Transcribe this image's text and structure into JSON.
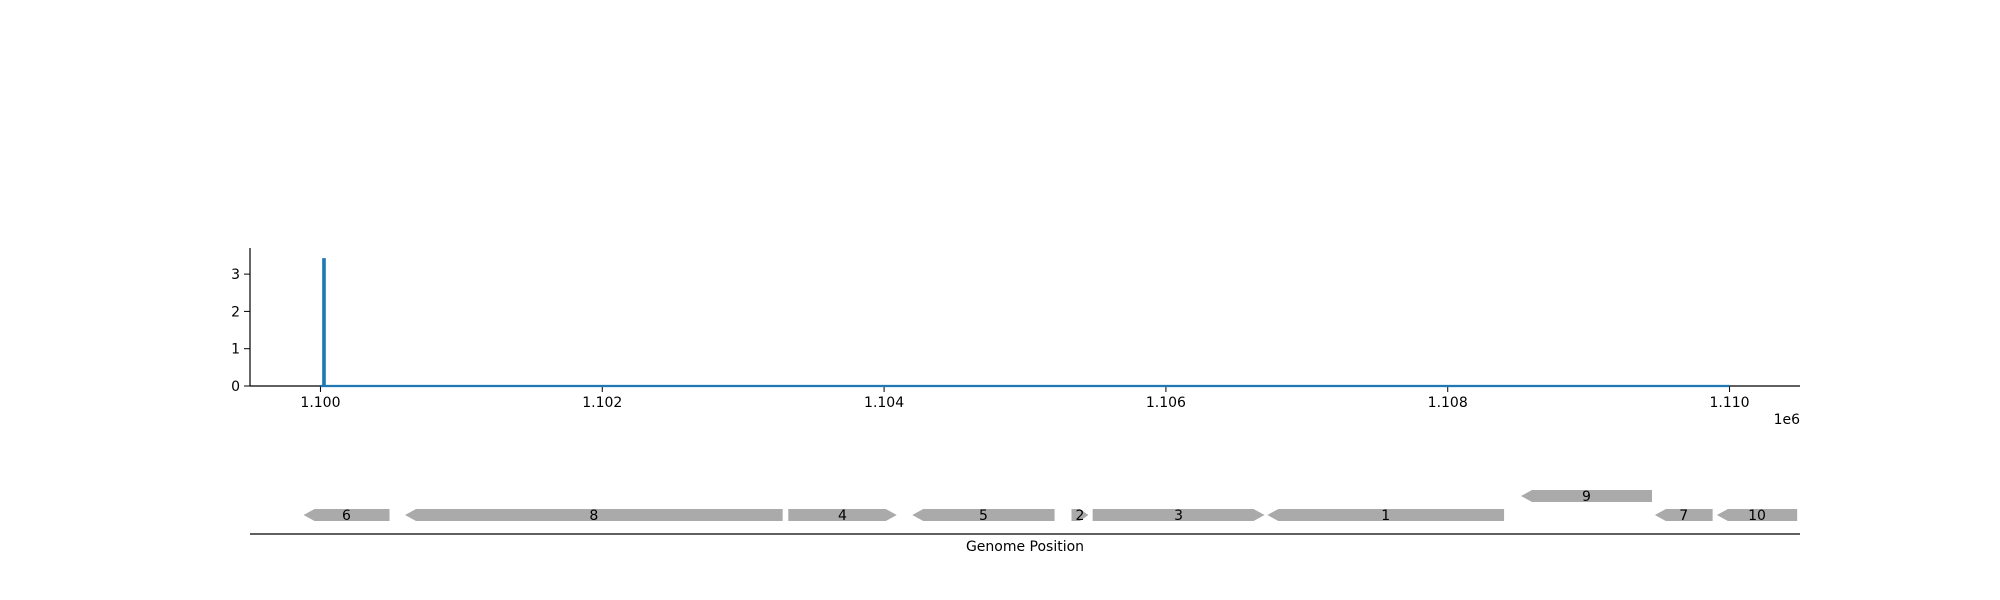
{
  "chart_data": [
    {
      "type": "line",
      "title": "",
      "xlabel": "",
      "ylabel": "",
      "xlim": [
        1099500,
        1110500
      ],
      "ylim": [
        0,
        3.7
      ],
      "x_ticks": [
        1100000,
        1102000,
        1104000,
        1106000,
        1108000,
        1110000
      ],
      "x_tick_labels": [
        "1.100",
        "1.102",
        "1.104",
        "1.106",
        "1.108",
        "1.110"
      ],
      "x_offset_label": "1e6",
      "y_ticks": [
        0,
        1,
        2,
        3
      ],
      "y_tick_labels": [
        "0",
        "1",
        "2",
        "3"
      ],
      "grid": false,
      "color": "#1f77b4",
      "series": [
        {
          "x": [
            1100000,
            1100020,
            1100020,
            1100030,
            1100030,
            1110000
          ],
          "y": [
            0,
            0,
            3.4,
            3.4,
            0,
            0
          ]
        }
      ]
    },
    {
      "type": "gene_map",
      "xlabel": "Genome Position",
      "xlim": [
        1099500,
        1110500
      ],
      "color": "#aaaaaa",
      "genes": [
        {
          "label": "6",
          "start": 1099880,
          "end": 1100490,
          "strand": "-",
          "row": 0
        },
        {
          "label": "8",
          "start": 1100600,
          "end": 1103280,
          "strand": "-",
          "row": 0
        },
        {
          "label": "4",
          "start": 1103320,
          "end": 1104090,
          "strand": "+",
          "row": 0
        },
        {
          "label": "5",
          "start": 1104200,
          "end": 1105210,
          "strand": "-",
          "row": 0
        },
        {
          "label": "2",
          "start": 1105330,
          "end": 1105450,
          "strand": "+",
          "row": 0
        },
        {
          "label": "3",
          "start": 1105480,
          "end": 1106700,
          "strand": "+",
          "row": 0
        },
        {
          "label": "1",
          "start": 1106720,
          "end": 1108400,
          "strand": "-",
          "row": 0
        },
        {
          "label": "9",
          "start": 1108520,
          "end": 1109450,
          "strand": "-",
          "row": 1
        },
        {
          "label": "7",
          "start": 1109470,
          "end": 1109880,
          "strand": "-",
          "row": 0
        },
        {
          "label": "10",
          "start": 1109910,
          "end": 1110480,
          "strand": "-",
          "row": 0
        }
      ]
    }
  ]
}
